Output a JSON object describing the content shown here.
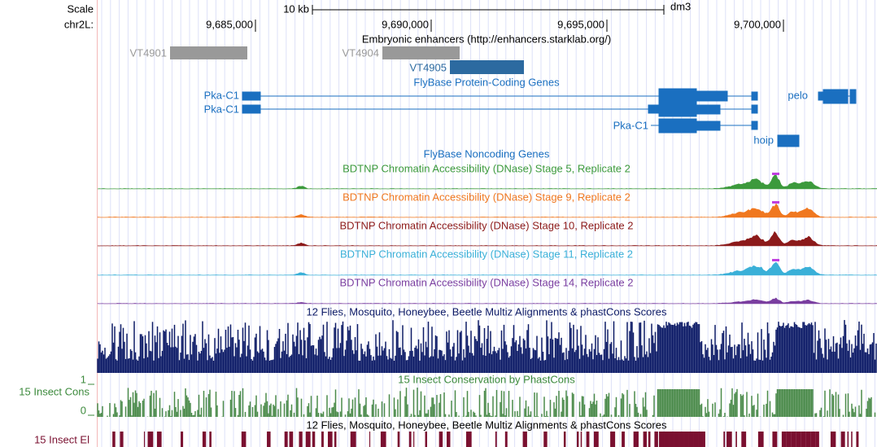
{
  "ruler": {
    "scale_label": "Scale",
    "scale_bar": "10 kb",
    "assembly": "dm3",
    "chrom_label": "chr2L:",
    "positions": [
      "9,685,000",
      "9,690,000",
      "9,695,000",
      "9,700,000"
    ]
  },
  "tracks": [
    {
      "title": "Embryonic enhancers (http://enhancers.starklab.org/)",
      "items": [
        "VT4901",
        "VT4904",
        "VT4905"
      ]
    },
    {
      "title": "FlyBase Protein-Coding Genes",
      "items": [
        "Pka-C1",
        "Pka-C1",
        "Pka-C1",
        "pelo",
        "hoip"
      ]
    },
    {
      "title": "FlyBase Noncoding Genes"
    },
    {
      "title": "BDTNP Chromatin Accessibility (DNase) Stage 5, Replicate 2"
    },
    {
      "title": "BDTNP Chromatin Accessibility (DNase) Stage 9, Replicate 2"
    },
    {
      "title": "BDTNP Chromatin Accessibility (DNase) Stage 10, Replicate 2"
    },
    {
      "title": "BDTNP Chromatin Accessibility (DNase) Stage 11, Replicate 2"
    },
    {
      "title": "BDTNP Chromatin Accessibility (DNase) Stage 14, Replicate 2"
    },
    {
      "title": "12 Flies, Mosquito, Honeybee, Beetle Multiz Alignments & phastCons Scores"
    },
    {
      "title": "15 Insect Conservation by PhastCons",
      "side_label": "15 Insect Cons",
      "axis_labels": [
        "1",
        "0"
      ]
    },
    {
      "title": "12 Flies, Mosquito, Honeybee, Beetle Multiz Alignments & phastCons Scores",
      "side_label": "15 Insect El"
    }
  ]
}
